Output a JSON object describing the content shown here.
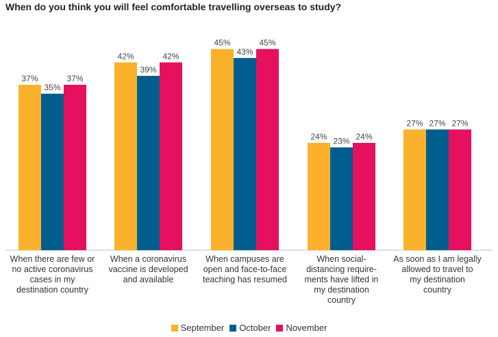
{
  "chart_data": {
    "type": "bar",
    "title": "When do you think you will feel comfortable travelling overseas to study?",
    "categories": [
      "When there are few or no active coronavirus cases in my destination country",
      "When a coronavirus vaccine is developed and available",
      "When campuses are open and face-to-face teaching has resumed",
      "When social-distancing requirements have lifted in my destination country",
      "As soon as I am legally allowed to travel to my destination country"
    ],
    "category_lines": [
      [
        "When there are few or",
        "no active coronavirus",
        "cases in my",
        "destination country"
      ],
      [
        "When a coronavirus",
        "vaccine is developed",
        "and available"
      ],
      [
        "When campuses are",
        "open and face-to-face",
        "teaching has resumed"
      ],
      [
        "When social-",
        "distancing require-",
        "ments have lifted in",
        "my destination",
        "country"
      ],
      [
        "As soon as I am legally",
        "allowed to travel to",
        "my destination",
        "country"
      ]
    ],
    "series": [
      {
        "name": "September",
        "color": "#FBB12B",
        "values": [
          37,
          42,
          45,
          24,
          27
        ]
      },
      {
        "name": "October",
        "color": "#005E8F",
        "values": [
          35,
          39,
          43,
          23,
          27
        ]
      },
      {
        "name": "November",
        "color": "#E5105E",
        "values": [
          37,
          42,
          45,
          24,
          27
        ]
      }
    ],
    "value_suffix": "%",
    "ylim": [
      0,
      52
    ],
    "grid": false,
    "legend_position": "bottom"
  }
}
